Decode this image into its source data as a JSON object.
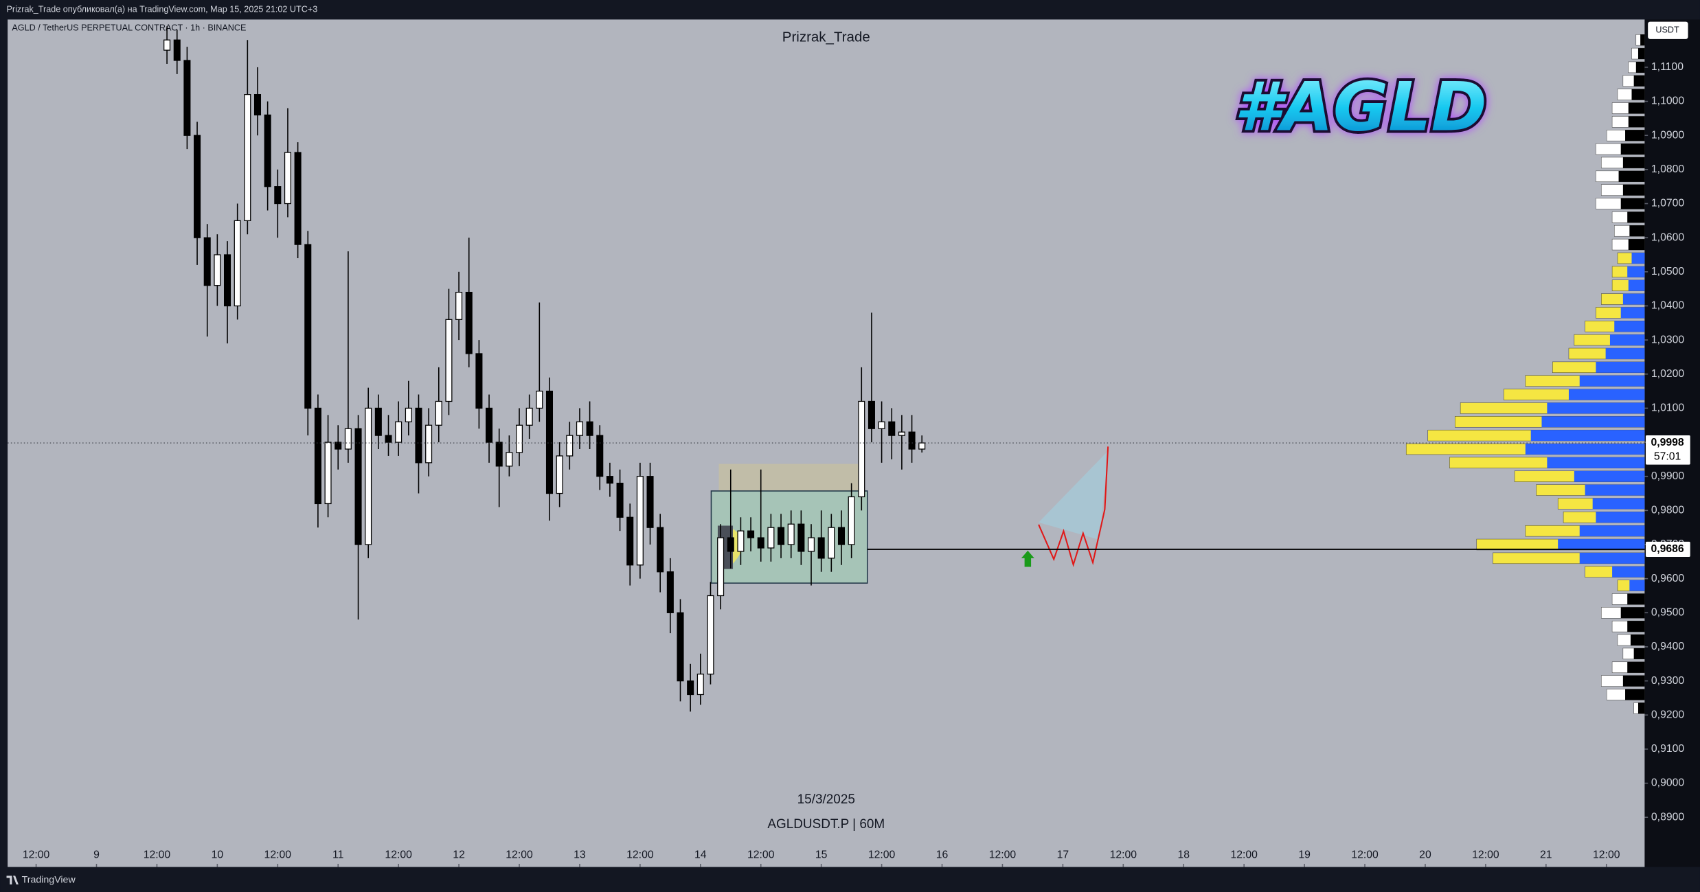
{
  "header": {
    "publisher": "Prizrak_Trade опубликовал(а) на TradingView.com, Мар 15, 2025 21:02 UTC+3",
    "brand": "TradingView"
  },
  "chart_data": {
    "type": "candlestick",
    "symbol": "AGLD / TetherUS PERPETUAL CONTRACT · 1h · BINANCE",
    "title": "Prizrak_Trade",
    "logo": "#AGLD",
    "date_label": "15/3/2025",
    "ticker_label": "AGLDUSDT.P | 60M",
    "currency": "USDT",
    "x": [
      14,
      16,
      18,
      20,
      22,
      24,
      26,
      28,
      30,
      32,
      34,
      36,
      38,
      40,
      42,
      44,
      46,
      48,
      50,
      52,
      54,
      56,
      58,
      60,
      62,
      64,
      66,
      68,
      70,
      72,
      74,
      76,
      78,
      80,
      82,
      84,
      86,
      88,
      90,
      92,
      94,
      96,
      98,
      100,
      102,
      104,
      106,
      108,
      110,
      112,
      114,
      116,
      118,
      120,
      122,
      124,
      126,
      128,
      130,
      132,
      134,
      136,
      138,
      140,
      142,
      144,
      146,
      148,
      150,
      152,
      154,
      156,
      158,
      160,
      162,
      164
    ],
    "open": [
      1.115,
      1.118,
      1.112,
      1.09,
      1.06,
      1.046,
      1.055,
      1.04,
      1.065,
      1.102,
      1.096,
      1.075,
      1.07,
      1.085,
      1.058,
      1.01,
      0.982,
      1.0,
      0.998,
      1.004,
      0.97,
      1.01,
      1.002,
      1.0,
      1.006,
      1.01,
      0.994,
      1.005,
      1.012,
      1.036,
      1.044,
      1.026,
      1.01,
      1.0,
      0.993,
      0.997,
      1.005,
      1.01,
      1.015,
      0.985,
      0.996,
      1.002,
      1.006,
      1.002,
      0.99,
      0.988,
      0.978,
      0.964,
      0.99,
      0.975,
      0.962,
      0.95,
      0.93,
      0.926,
      0.932,
      0.955,
      0.972,
      0.968,
      0.974,
      0.972,
      0.969,
      0.975,
      0.97,
      0.976,
      0.968,
      0.972,
      0.966,
      0.975,
      0.97,
      0.984,
      1.012,
      1.004,
      1.006,
      1.002,
      1.003,
      0.998
    ],
    "high": [
      1.122,
      1.121,
      1.116,
      1.094,
      1.064,
      1.061,
      1.059,
      1.07,
      1.118,
      1.11,
      1.1,
      1.08,
      1.098,
      1.088,
      1.062,
      1.014,
      1.008,
      1.005,
      1.056,
      1.008,
      1.016,
      1.014,
      1.008,
      1.012,
      1.018,
      1.014,
      1.01,
      1.022,
      1.045,
      1.05,
      1.06,
      1.03,
      1.014,
      1.004,
      1.002,
      1.01,
      1.014,
      1.041,
      1.019,
      1.0,
      1.006,
      1.01,
      1.012,
      1.005,
      0.994,
      0.992,
      0.982,
      0.994,
      0.994,
      0.979,
      0.966,
      0.954,
      0.935,
      0.938,
      0.959,
      0.976,
      0.992,
      0.978,
      0.978,
      0.992,
      0.979,
      0.979,
      0.98,
      0.98,
      0.976,
      0.98,
      0.979,
      0.98,
      0.988,
      1.022,
      1.038,
      1.012,
      1.01,
      1.008,
      1.008,
      1.002
    ],
    "low": [
      1.111,
      1.108,
      1.086,
      1.052,
      1.031,
      1.04,
      1.029,
      1.036,
      1.061,
      1.09,
      1.068,
      1.06,
      1.066,
      1.054,
      1.002,
      0.975,
      0.978,
      0.992,
      0.994,
      0.948,
      0.966,
      0.998,
      0.996,
      0.996,
      1.002,
      0.985,
      0.99,
      1.0,
      1.008,
      1.03,
      1.022,
      1.004,
      0.994,
      0.981,
      0.99,
      0.993,
      1.001,
      1.006,
      0.977,
      0.981,
      0.992,
      0.998,
      0.998,
      0.986,
      0.984,
      0.974,
      0.958,
      0.96,
      0.97,
      0.956,
      0.944,
      0.924,
      0.921,
      0.923,
      0.929,
      0.951,
      0.963,
      0.964,
      0.968,
      0.965,
      0.965,
      0.966,
      0.966,
      0.964,
      0.958,
      0.962,
      0.962,
      0.964,
      0.966,
      0.98,
      1.0,
      0.994,
      0.995,
      0.992,
      0.994,
      0.997
    ],
    "close": [
      1.118,
      1.112,
      1.09,
      1.06,
      1.046,
      1.055,
      1.04,
      1.065,
      1.102,
      1.096,
      1.075,
      1.07,
      1.085,
      1.058,
      1.01,
      0.982,
      1.0,
      0.998,
      1.004,
      0.97,
      1.01,
      1.002,
      1.0,
      1.006,
      1.01,
      0.994,
      1.005,
      1.012,
      1.036,
      1.044,
      1.026,
      1.01,
      1.0,
      0.993,
      0.997,
      1.005,
      1.01,
      1.015,
      0.985,
      0.996,
      1.002,
      1.006,
      1.002,
      0.99,
      0.988,
      0.978,
      0.964,
      0.99,
      0.975,
      0.962,
      0.95,
      0.93,
      0.926,
      0.932,
      0.955,
      0.972,
      0.968,
      0.974,
      0.972,
      0.969,
      0.975,
      0.97,
      0.976,
      0.968,
      0.972,
      0.966,
      0.975,
      0.97,
      0.984,
      1.012,
      1.004,
      1.006,
      1.002,
      1.003,
      0.998,
      0.9998
    ],
    "up_color": "#ffffff",
    "down_color": "#000000",
    "xlim": [
      -17.66,
      307.6
    ],
    "xticks": [
      {
        "value": -12,
        "label": "12:00"
      },
      {
        "value": 0,
        "label": "9"
      },
      {
        "value": 12,
        "label": "12:00"
      },
      {
        "value": 24,
        "label": "10"
      },
      {
        "value": 36,
        "label": "12:00"
      },
      {
        "value": 48,
        "label": "11"
      },
      {
        "value": 60,
        "label": "12:00"
      },
      {
        "value": 72,
        "label": "12"
      },
      {
        "value": 84,
        "label": "12:00"
      },
      {
        "value": 96,
        "label": "13"
      },
      {
        "value": 108,
        "label": "12:00"
      },
      {
        "value": 120,
        "label": "14"
      },
      {
        "value": 132,
        "label": "12:00"
      },
      {
        "value": 144,
        "label": "15"
      },
      {
        "value": 156,
        "label": "12:00"
      },
      {
        "value": 168,
        "label": "16"
      },
      {
        "value": 180,
        "label": "12:00"
      },
      {
        "value": 192,
        "label": "17"
      },
      {
        "value": 204,
        "label": "12:00"
      },
      {
        "value": 216,
        "label": "18"
      },
      {
        "value": 228,
        "label": "12:00"
      },
      {
        "value": 240,
        "label": "19"
      },
      {
        "value": 252,
        "label": "12:00"
      },
      {
        "value": 264,
        "label": "20"
      },
      {
        "value": 276,
        "label": "12:00"
      },
      {
        "value": 288,
        "label": "21"
      },
      {
        "value": 300,
        "label": "12:00"
      }
    ],
    "ylim": [
      0.8754,
      1.124
    ],
    "yticks": [
      {
        "value": 0.89,
        "label": "0,8900"
      },
      {
        "value": 0.9,
        "label": "0,9000"
      },
      {
        "value": 0.91,
        "label": "0,9100"
      },
      {
        "value": 0.92,
        "label": "0,9200"
      },
      {
        "value": 0.93,
        "label": "0,9300"
      },
      {
        "value": 0.94,
        "label": "0,9400"
      },
      {
        "value": 0.95,
        "label": "0,9500"
      },
      {
        "value": 0.96,
        "label": "0,9600"
      },
      {
        "value": 0.97,
        "label": "0,9700"
      },
      {
        "value": 0.98,
        "label": "0,9800"
      },
      {
        "value": 0.99,
        "label": "0,9900"
      },
      {
        "value": 1.0,
        "label": "1,0000"
      },
      {
        "value": 1.01,
        "label": "1,0100"
      },
      {
        "value": 1.02,
        "label": "1,0200"
      },
      {
        "value": 1.03,
        "label": "1,0300"
      },
      {
        "value": 1.04,
        "label": "1,0400"
      },
      {
        "value": 1.05,
        "label": "1,0500"
      },
      {
        "value": 1.06,
        "label": "1,0600"
      },
      {
        "value": 1.07,
        "label": "1,0700"
      },
      {
        "value": 1.08,
        "label": "1,0800"
      },
      {
        "value": 1.09,
        "label": "1,0900"
      },
      {
        "value": 1.1,
        "label": "1,1000"
      },
      {
        "value": 1.11,
        "label": "1,1100"
      }
    ],
    "last_price": {
      "value": 0.9998,
      "label": "0,9998",
      "countdown": "57:01"
    },
    "level": {
      "value": 0.9686,
      "label": "0,9686"
    },
    "volume_profile": {
      "levels": [
        0.922,
        0.926,
        0.93,
        0.934,
        0.938,
        0.942,
        0.946,
        0.95,
        0.954,
        0.958,
        0.962,
        0.966,
        0.97,
        0.974,
        0.978,
        0.982,
        0.986,
        0.99,
        0.994,
        0.998,
        1.002,
        1.006,
        1.01,
        1.014,
        1.018,
        1.022,
        1.026,
        1.03,
        1.034,
        1.038,
        1.042,
        1.046,
        1.05,
        1.054,
        1.058,
        1.062,
        1.066,
        1.07,
        1.074,
        1.078,
        1.082,
        1.086,
        1.09,
        1.094,
        1.098,
        1.102,
        1.106,
        1.11,
        1.114,
        1.118
      ],
      "total": [
        10,
        35,
        40,
        30,
        20,
        25,
        30,
        40,
        30,
        25,
        55,
        140,
        155,
        110,
        75,
        80,
        100,
        120,
        180,
        220,
        200,
        175,
        170,
        130,
        110,
        85,
        70,
        65,
        55,
        45,
        40,
        30,
        30,
        25,
        30,
        28,
        30,
        45,
        40,
        45,
        40,
        45,
        35,
        30,
        30,
        25,
        20,
        15,
        12,
        8
      ],
      "inner": [
        6,
        18,
        20,
        16,
        10,
        13,
        16,
        22,
        16,
        14,
        30,
        60,
        80,
        60,
        45,
        48,
        55,
        65,
        90,
        110,
        105,
        95,
        90,
        70,
        60,
        45,
        36,
        32,
        28,
        22,
        20,
        15,
        16,
        12,
        15,
        14,
        16,
        22,
        20,
        24,
        20,
        22,
        18,
        15,
        15,
        12,
        10,
        8,
        6,
        4
      ],
      "value_area": [
        0.958,
        1.054
      ],
      "colors": {
        "outer": "#ffffff",
        "inner": "#000000",
        "va_outer": "#f5e642",
        "va_inner": "#2962ff"
      }
    }
  }
}
